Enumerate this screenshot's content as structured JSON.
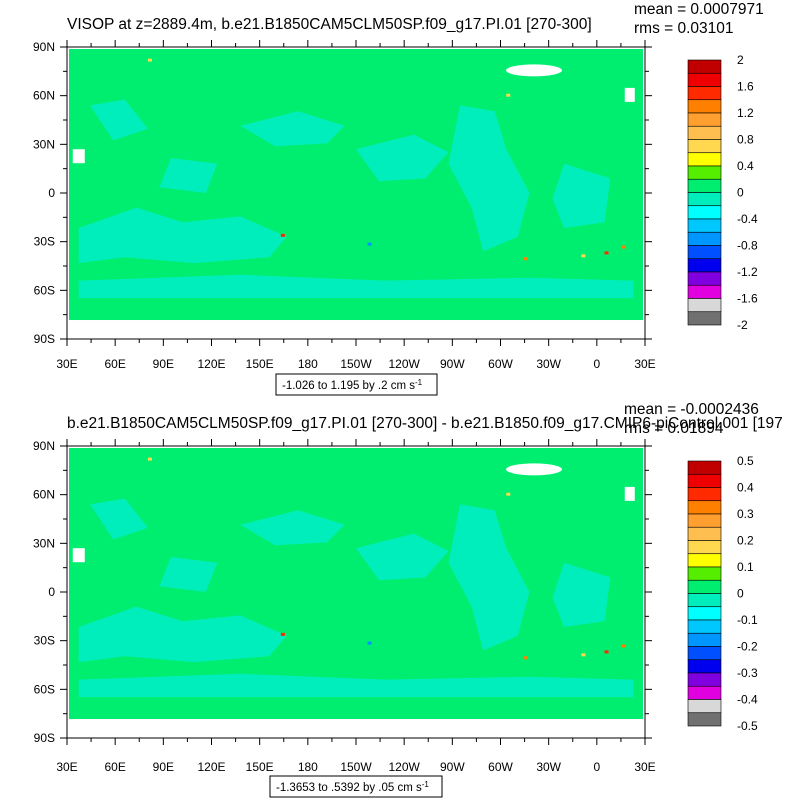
{
  "chart_data": [
    {
      "type": "heatmap",
      "title": "VISOP at z=2889.4m, b.e21.B1850CAM5CLM50SP.f09_g17.PI.01 [270-300]",
      "mean_text": "mean = 0.0007971",
      "rms_text": "rms = 0.03101",
      "range_text": "-1.026 to 1.195 by .2 cm s",
      "range_units_exp": "-1",
      "x_ticks": [
        "30E",
        "60E",
        "90E",
        "120E",
        "150E",
        "180",
        "150W",
        "120W",
        "90W",
        "60W",
        "30W",
        "0",
        "30E"
      ],
      "y_ticks": [
        "90N",
        "60N",
        "30N",
        "0",
        "30S",
        "60S",
        "90S"
      ],
      "colorbar_labels": [
        "2",
        "1.6",
        "1.2",
        "0.8",
        "0.4",
        "0",
        "-0.4",
        "-0.8",
        "-1.2",
        "-1.6",
        "-2"
      ],
      "colorbar_colors": [
        "#c00000",
        "#ee0000",
        "#ff2a00",
        "#ff8000",
        "#ff9f30",
        "#ffbf50",
        "#ffd850",
        "#ffff00",
        "#55ee00",
        "#00ee70",
        "#00eebb",
        "#00ffff",
        "#00c8ff",
        "#0096ff",
        "#0050ff",
        "#0000ee",
        "#8000e0",
        "#e000e0",
        "#d8d8d8",
        "#707070"
      ],
      "field_color": "#00ee70",
      "negative_color": "#00eebb"
    },
    {
      "type": "heatmap",
      "title": "b.e21.B1850CAM5CLM50SP.f09_g17.PI.01 [270-300] - b.e21.B1850.f09_g17.CMIP6-piControl.001 [197",
      "mean_text": "mean = -0.0002436",
      "rms_text": "rms = 0.01894",
      "range_text": "-1.3653 to .5392 by .05 cm s",
      "range_units_exp": "-1",
      "x_ticks": [
        "30E",
        "60E",
        "90E",
        "120E",
        "150E",
        "180",
        "150W",
        "120W",
        "90W",
        "60W",
        "30W",
        "0",
        "30E"
      ],
      "y_ticks": [
        "90N",
        "60N",
        "30N",
        "0",
        "30S",
        "60S",
        "90S"
      ],
      "colorbar_labels": [
        "0.5",
        "0.4",
        "0.3",
        "0.2",
        "0.1",
        "0",
        "-0.1",
        "-0.2",
        "-0.3",
        "-0.4",
        "-0.5"
      ],
      "colorbar_colors": [
        "#c00000",
        "#ee0000",
        "#ff2a00",
        "#ff8000",
        "#ff9f30",
        "#ffbf50",
        "#ffd850",
        "#ffff00",
        "#55ee00",
        "#00ee70",
        "#00eebb",
        "#00ffff",
        "#00c8ff",
        "#0096ff",
        "#0050ff",
        "#0000ee",
        "#8000e0",
        "#e000e0",
        "#d8d8d8",
        "#707070"
      ],
      "field_color": "#00ee70",
      "negative_color": "#00eebb"
    }
  ]
}
